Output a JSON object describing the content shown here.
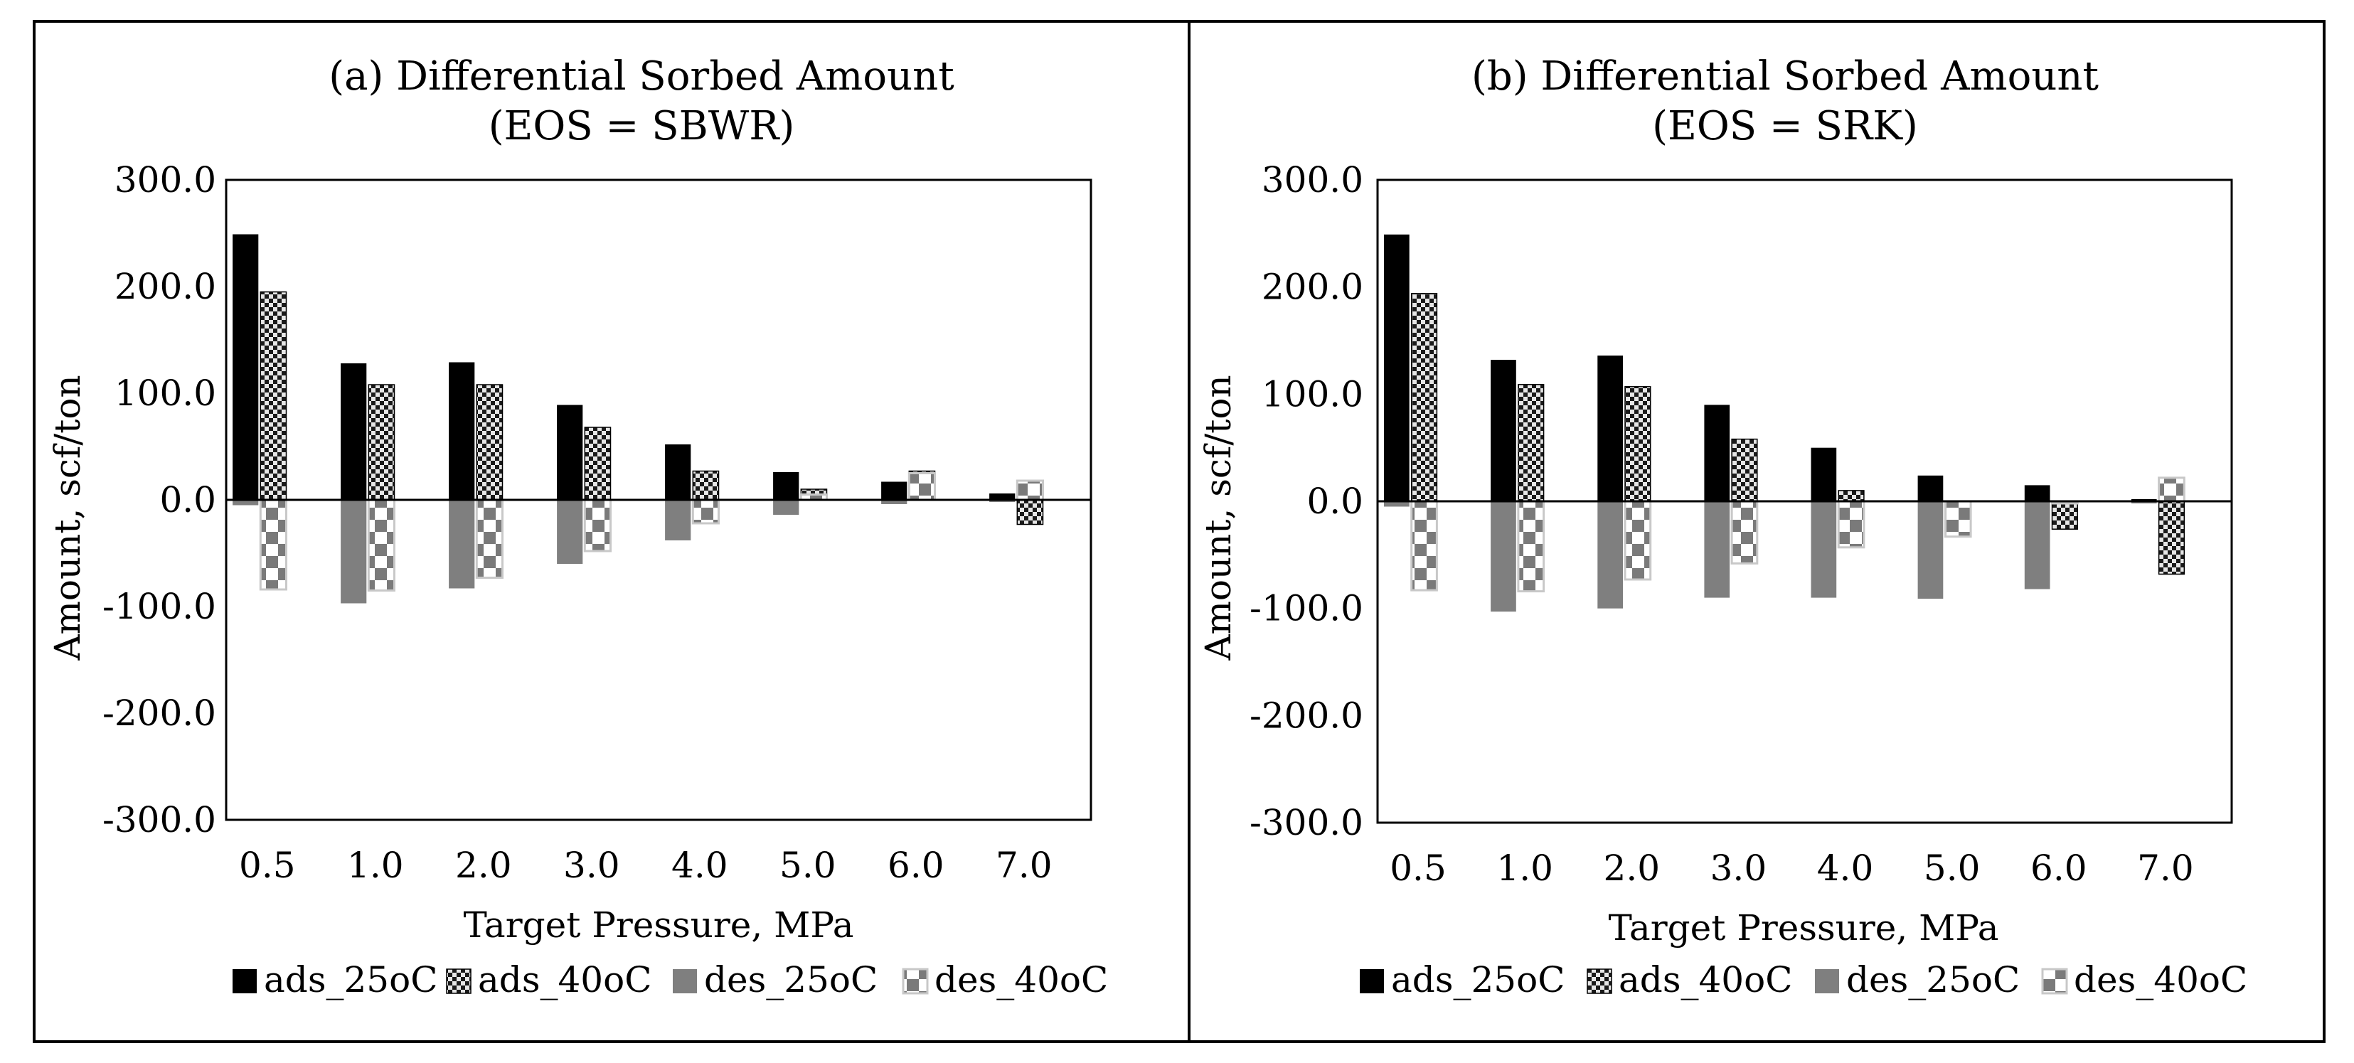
{
  "chart_data": [
    {
      "type": "bar",
      "title": "(a) Differential Sorbed Amount",
      "subtitle": "(EOS = SBWR)",
      "xlabel": "Target Pressure, MPa",
      "ylabel": "Amount, scf/ton",
      "ylim": [
        -300,
        300
      ],
      "yticks": [
        "300.0",
        "200.0",
        "100.0",
        "0.0",
        "-100.0",
        "-200.0",
        "-300.0"
      ],
      "ytick_values": [
        300,
        200,
        100,
        0,
        -100,
        -200,
        -300
      ],
      "categories": [
        "0.5",
        "1.0",
        "2.0",
        "3.0",
        "4.0",
        "5.0",
        "6.0",
        "7.0"
      ],
      "legend_position": "bottom",
      "grid": false,
      "series": [
        {
          "name": "ads_25oC",
          "style": "solid-black",
          "values": [
            249,
            128,
            129,
            89,
            52,
            26,
            17,
            6
          ]
        },
        {
          "name": "ads_40oC",
          "style": "checker-fine",
          "values": [
            195,
            108,
            108,
            68,
            27,
            10,
            27,
            -23
          ]
        },
        {
          "name": "des_25oC",
          "style": "solid-gray",
          "values": [
            -5,
            -97,
            -83,
            -60,
            -38,
            -14,
            -4,
            -2
          ]
        },
        {
          "name": "des_40oC",
          "style": "checker-large",
          "values": [
            -84,
            -85,
            -73,
            -48,
            -22,
            5,
            25,
            18
          ]
        }
      ]
    },
    {
      "type": "bar",
      "title": "(b) Differential Sorbed Amount",
      "subtitle": "(EOS = SRK)",
      "xlabel": "Target Pressure, MPa",
      "ylabel": "Amount, scf/ton",
      "ylim": [
        -300,
        300
      ],
      "yticks": [
        "300.0",
        "200.0",
        "100.0",
        "0.0",
        "-100.0",
        "-200.0",
        "-300.0"
      ],
      "ytick_values": [
        300,
        200,
        100,
        0,
        -100,
        -200,
        -300
      ],
      "categories": [
        "0.5",
        "1.0",
        "2.0",
        "3.0",
        "4.0",
        "5.0",
        "6.0",
        "7.0"
      ],
      "legend_position": "bottom",
      "grid": false,
      "series": [
        {
          "name": "ads_25oC",
          "style": "solid-black",
          "values": [
            249,
            132,
            136,
            90,
            50,
            24,
            15,
            2
          ]
        },
        {
          "name": "ads_40oC",
          "style": "checker-fine",
          "values": [
            194,
            109,
            107,
            58,
            10,
            0,
            -26,
            -68
          ]
        },
        {
          "name": "des_25oC",
          "style": "solid-gray",
          "values": [
            -5,
            -103,
            -100,
            -90,
            -90,
            -91,
            -82,
            -2
          ]
        },
        {
          "name": "des_40oC",
          "style": "checker-large",
          "values": [
            -83,
            -84,
            -73,
            -58,
            -43,
            -33,
            -2,
            22
          ]
        }
      ]
    }
  ],
  "colors": {
    "solid_black": "#000000",
    "solid_gray": "#7f7f7f",
    "checker_dark": "#1a1a1a",
    "checker_light": "#d9d9d9",
    "large_check_dark": "#7a7a7a",
    "large_check_light": "#ffffff",
    "large_check_border": "#c8c8c8",
    "frame": "#000000"
  }
}
